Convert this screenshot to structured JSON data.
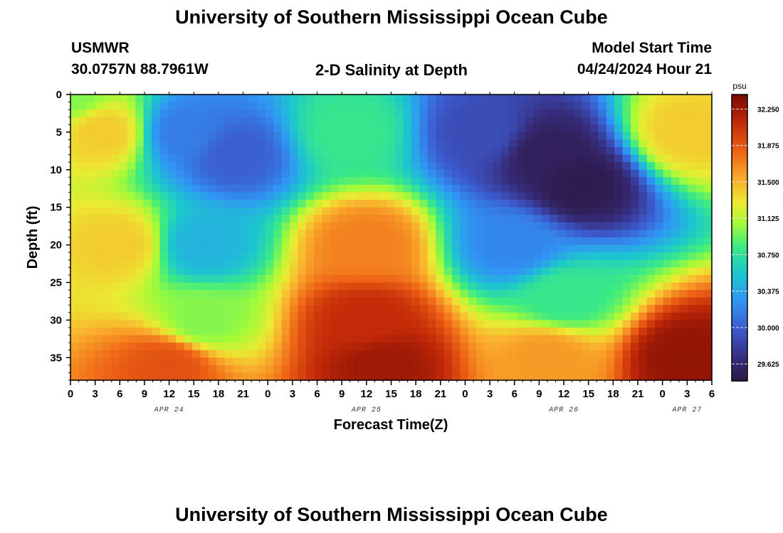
{
  "header": {
    "title": "University of Southern Mississippi Ocean Cube",
    "station": "USMWR",
    "coords": "30.0757N  88.7961W",
    "subtitle": "2-D Salinity at Depth",
    "model_label": "Model Start Time",
    "model_time": "04/24/2024 Hour 21"
  },
  "footer": {
    "title": "University of Southern Mississippi Ocean Cube"
  },
  "chart_data": {
    "type": "heatmap",
    "ylabel": "Depth (ft)",
    "xlabel": "Forecast Time(Z)",
    "ylim": [
      0,
      38
    ],
    "y_inverted": true,
    "y_ticks": [
      0,
      5,
      10,
      15,
      20,
      25,
      30,
      35
    ],
    "x_hours_range": [
      0,
      78
    ],
    "x_tick_labels": [
      "0",
      "3",
      "6",
      "9",
      "12",
      "15",
      "18",
      "21",
      "0",
      "3",
      "6",
      "9",
      "12",
      "15",
      "18",
      "21",
      "0",
      "3",
      "6",
      "9",
      "12",
      "15",
      "18",
      "21",
      "0",
      "3",
      "6"
    ],
    "date_labels": [
      {
        "label": "APR 24",
        "hour": 12
      },
      {
        "label": "APR 25",
        "hour": 36
      },
      {
        "label": "APR 26",
        "hour": 60
      },
      {
        "label": "APR 27",
        "hour": 75
      }
    ],
    "colorbar": {
      "unit": "psu",
      "range": [
        29.45,
        32.4
      ],
      "ticks": [
        29.625,
        30.0,
        30.375,
        30.75,
        31.125,
        31.5,
        31.875,
        32.25
      ],
      "tick_labels": [
        "29.625",
        "30.000",
        "30.375",
        "30.750",
        "31.125",
        "31.500",
        "31.875",
        "32.250"
      ]
    },
    "salinity_samples": [
      {
        "hour": 0,
        "depth": 0,
        "psu": 31.0
      },
      {
        "hour": 4,
        "depth": 5,
        "psu": 31.4
      },
      {
        "hour": 6,
        "depth": 20,
        "psu": 31.4
      },
      {
        "hour": 14,
        "depth": 5,
        "psu": 30.15
      },
      {
        "hour": 20,
        "depth": 8,
        "psu": 30.0
      },
      {
        "hour": 16,
        "depth": 20,
        "psu": 30.45
      },
      {
        "hour": 16,
        "depth": 30,
        "psu": 31.0
      },
      {
        "hour": 12,
        "depth": 36,
        "psu": 31.9
      },
      {
        "hour": 34,
        "depth": 5,
        "psu": 30.8
      },
      {
        "hour": 36,
        "depth": 20,
        "psu": 31.7
      },
      {
        "hour": 36,
        "depth": 30,
        "psu": 32.1
      },
      {
        "hour": 38,
        "depth": 36,
        "psu": 32.25
      },
      {
        "hour": 50,
        "depth": 5,
        "psu": 29.9
      },
      {
        "hour": 58,
        "depth": 8,
        "psu": 29.55
      },
      {
        "hour": 62,
        "depth": 12,
        "psu": 29.5
      },
      {
        "hour": 54,
        "depth": 20,
        "psu": 30.2
      },
      {
        "hour": 60,
        "depth": 27,
        "psu": 30.8
      },
      {
        "hour": 58,
        "depth": 35,
        "psu": 31.6
      },
      {
        "hour": 75,
        "depth": 5,
        "psu": 31.4
      },
      {
        "hour": 75,
        "depth": 35,
        "psu": 32.3
      }
    ]
  }
}
